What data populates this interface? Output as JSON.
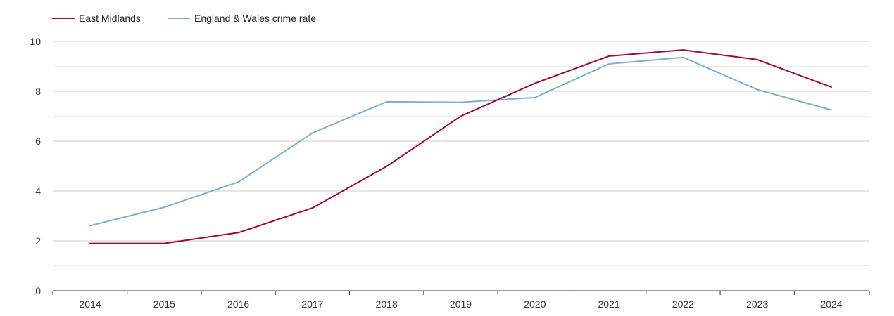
{
  "chart_data": {
    "type": "line",
    "title": "",
    "xlabel": "",
    "ylabel": "",
    "x": [
      "2014",
      "2015",
      "2016",
      "2017",
      "2018",
      "2019",
      "2020",
      "2021",
      "2022",
      "2023",
      "2024"
    ],
    "ylim": [
      0,
      10
    ],
    "yticks": [
      "0",
      "2",
      "4",
      "6",
      "8",
      "10"
    ],
    "grid": true,
    "legend_position": "top-left",
    "series": [
      {
        "name": "East Midlands",
        "color": "#9b0a31",
        "values": [
          1.9,
          1.9,
          2.33,
          3.32,
          4.99,
          7.0,
          8.32,
          9.41,
          9.66,
          9.27,
          8.17
        ]
      },
      {
        "name": "England & Wales crime rate",
        "color": "#7bafd4",
        "values": [
          2.61,
          3.35,
          4.36,
          6.33,
          7.58,
          7.56,
          7.75,
          9.1,
          9.36,
          8.07,
          7.25
        ]
      }
    ]
  }
}
